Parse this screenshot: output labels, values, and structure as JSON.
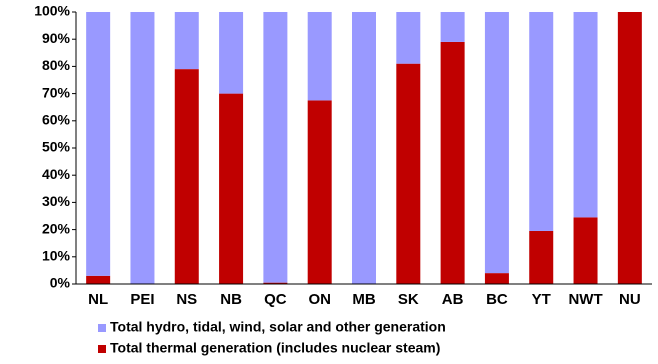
{
  "chart_data": {
    "type": "stacked_bar",
    "categories": [
      "NL",
      "PEI",
      "NS",
      "NB",
      "QC",
      "ON",
      "MB",
      "SK",
      "AB",
      "BC",
      "YT",
      "NWT",
      "NU"
    ],
    "series": [
      {
        "name": "Total hydro, tidal, wind, solar and other generation",
        "color": "#9999ff",
        "values": [
          97,
          100,
          21,
          30,
          99.5,
          32.5,
          100,
          19,
          11,
          96,
          80.5,
          75.5,
          0
        ]
      },
      {
        "name": "Total thermal generation (includes nuclear steam)",
        "color": "#c00000",
        "values": [
          3,
          0,
          79,
          70,
          0.5,
          67.5,
          0,
          81,
          89,
          4,
          19.5,
          24.5,
          100
        ]
      }
    ],
    "stack_from_bottom": [
      1,
      0
    ],
    "ylim": [
      0,
      100
    ],
    "yticks": [
      {
        "value": 0,
        "label": "0%"
      },
      {
        "value": 10,
        "label": "10%"
      },
      {
        "value": 20,
        "label": "20%"
      },
      {
        "value": 30,
        "label": "30%"
      },
      {
        "value": 40,
        "label": "40%"
      },
      {
        "value": 50,
        "label": "50%"
      },
      {
        "value": 60,
        "label": "60%"
      },
      {
        "value": 70,
        "label": "70%"
      },
      {
        "value": 80,
        "label": "80%"
      },
      {
        "value": 90,
        "label": "90%"
      },
      {
        "value": 100,
        "label": "100%"
      }
    ],
    "grid": false
  }
}
